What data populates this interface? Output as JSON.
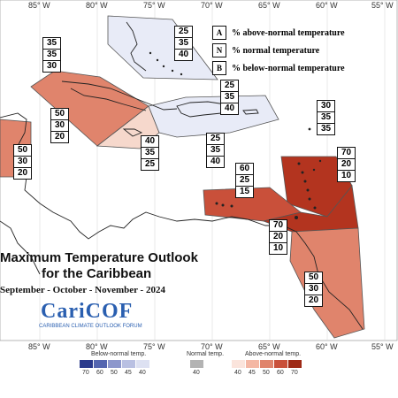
{
  "longitudes": [
    "85° W",
    "80° W",
    "75° W",
    "70° W",
    "65° W",
    "60° W",
    "55° W"
  ],
  "legend_key": {
    "above": {
      "letter": "A",
      "text": "% above-normal temperature"
    },
    "normal": {
      "letter": "N",
      "text": "% normal temperature"
    },
    "below": {
      "letter": "B",
      "text": "% below-normal temperature"
    }
  },
  "zones": [
    {
      "id": "bahamas",
      "values": [
        "25",
        "35",
        "40"
      ],
      "fill": "#e8ebf7"
    },
    {
      "id": "cayman",
      "values": [
        "35",
        "35",
        "30"
      ],
      "fill": "#ffffff"
    },
    {
      "id": "cuba-west",
      "values": [
        "50",
        "30",
        "20"
      ],
      "fill": "#e0846c"
    },
    {
      "id": "belize",
      "values": [
        "50",
        "30",
        "20"
      ],
      "fill": "#e0846c"
    },
    {
      "id": "jamaica",
      "values": [
        "40",
        "35",
        "25"
      ],
      "fill": "#f6d8cc"
    },
    {
      "id": "turks",
      "values": [
        "25",
        "35",
        "40"
      ],
      "fill": "#e8ebf7"
    },
    {
      "id": "hispaniola",
      "values": [
        "25",
        "35",
        "40"
      ],
      "fill": "#e8ebf7"
    },
    {
      "id": "bermuda-east",
      "values": [
        "30",
        "35",
        "35"
      ],
      "fill": "#ffffff"
    },
    {
      "id": "leewards",
      "values": [
        "70",
        "20",
        "10"
      ],
      "fill": "#b3341f"
    },
    {
      "id": "abc",
      "values": [
        "60",
        "25",
        "15"
      ],
      "fill": "#c9503a"
    },
    {
      "id": "trinidad",
      "values": [
        "70",
        "20",
        "10"
      ],
      "fill": "#b3341f"
    },
    {
      "id": "guianas",
      "values": [
        "50",
        "30",
        "20"
      ],
      "fill": "#e0846c"
    }
  ],
  "title": "Maximum Temperature Outlook",
  "subtitle": "for the Caribbean",
  "season": "September - October - November - 2024",
  "logo": "CariCOF",
  "logo_sub": "CARIBBEAN CLIMATE OUTLOOK FORUM",
  "scale": {
    "below_label": "Below-normal temp.",
    "normal_label": "Normal temp.",
    "above_label": "Above-normal temp.",
    "below_colors": [
      "#2b3a8c",
      "#5566b0",
      "#8d97cc",
      "#b9c0e2",
      "#dde1f2"
    ],
    "below_ticks": [
      "70",
      "60",
      "50",
      "45",
      "40"
    ],
    "normal_color": "#b3b3b3",
    "normal_ticks": [
      "40"
    ],
    "above_colors": [
      "#fbe4dc",
      "#f4b7a4",
      "#e0846c",
      "#c9503a",
      "#9e2a16"
    ],
    "above_ticks": [
      "40",
      "45",
      "50",
      "60",
      "70"
    ]
  }
}
